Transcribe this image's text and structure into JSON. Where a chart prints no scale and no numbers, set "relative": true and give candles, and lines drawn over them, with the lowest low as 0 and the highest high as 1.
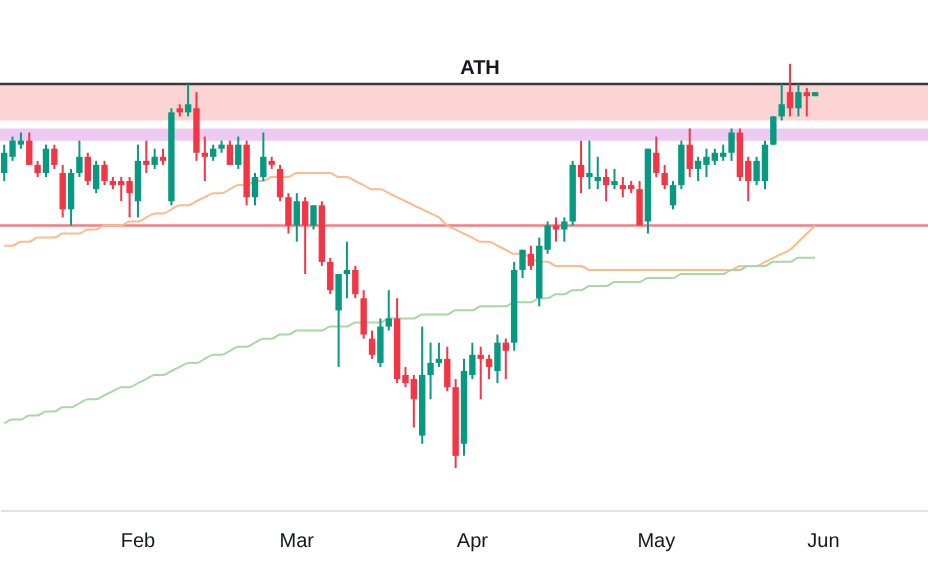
{
  "chart_data": {
    "type": "candlestick",
    "relative": true,
    "categories": [
      null,
      null,
      null,
      null,
      null,
      null,
      null,
      null,
      null,
      null,
      null,
      null,
      null,
      null,
      null,
      null,
      "Feb",
      null,
      null,
      null,
      null,
      null,
      null,
      null,
      null,
      null,
      null,
      null,
      null,
      null,
      null,
      null,
      null,
      null,
      null,
      "Mar",
      null,
      null,
      null,
      null,
      null,
      null,
      null,
      null,
      null,
      null,
      null,
      null,
      null,
      null,
      null,
      null,
      null,
      null,
      null,
      null,
      "Apr",
      null,
      null,
      null,
      null,
      null,
      null,
      null,
      null,
      null,
      null,
      null,
      null,
      null,
      null,
      null,
      null,
      null,
      null,
      null,
      null,
      null,
      "May",
      null,
      null,
      null,
      null,
      null,
      null,
      null,
      null,
      null,
      null,
      null,
      null,
      null,
      null,
      null,
      null,
      null,
      null,
      null,
      "Jun",
      null,
      null,
      null,
      null,
      null,
      null,
      null,
      null,
      null,
      null,
      null,
      null
    ],
    "ohlc": [
      [
        0.73,
        0.8,
        0.71,
        0.78
      ],
      [
        0.77,
        0.82,
        0.76,
        0.81
      ],
      [
        0.8,
        0.83,
        0.79,
        0.81
      ],
      [
        0.81,
        0.83,
        0.75,
        0.75
      ],
      [
        0.75,
        0.76,
        0.72,
        0.73
      ],
      [
        0.73,
        0.8,
        0.72,
        0.79
      ],
      [
        0.79,
        0.8,
        0.74,
        0.75
      ],
      [
        0.73,
        0.75,
        0.62,
        0.64
      ],
      [
        0.64,
        0.74,
        0.6,
        0.73
      ],
      [
        0.73,
        0.81,
        0.72,
        0.77
      ],
      [
        0.77,
        0.78,
        0.7,
        0.71
      ],
      [
        0.69,
        0.76,
        0.68,
        0.75
      ],
      [
        0.75,
        0.76,
        0.7,
        0.71
      ],
      [
        0.71,
        0.72,
        0.69,
        0.7
      ],
      [
        0.71,
        0.72,
        0.66,
        0.7
      ],
      [
        0.71,
        0.72,
        0.62,
        0.68
      ],
      [
        0.66,
        0.8,
        0.62,
        0.76
      ],
      [
        0.76,
        0.81,
        0.73,
        0.75
      ],
      [
        0.75,
        0.79,
        0.74,
        0.77
      ],
      [
        0.77,
        0.79,
        0.75,
        0.76
      ],
      [
        0.66,
        0.89,
        0.65,
        0.88
      ],
      [
        0.89,
        0.9,
        0.87,
        0.88
      ],
      [
        0.88,
        0.95,
        0.87,
        0.9
      ],
      [
        0.89,
        0.93,
        0.76,
        0.78
      ],
      [
        0.78,
        0.82,
        0.71,
        0.77
      ],
      [
        0.77,
        0.8,
        0.76,
        0.79
      ],
      [
        0.79,
        0.81,
        0.78,
        0.8
      ],
      [
        0.8,
        0.81,
        0.75,
        0.75
      ],
      [
        0.75,
        0.82,
        0.74,
        0.8
      ],
      [
        0.8,
        0.81,
        0.65,
        0.67
      ],
      [
        0.67,
        0.73,
        0.65,
        0.72
      ],
      [
        0.72,
        0.83,
        0.71,
        0.77
      ],
      [
        0.76,
        0.77,
        0.74,
        0.75
      ],
      [
        0.74,
        0.75,
        0.66,
        0.67
      ],
      [
        0.67,
        0.68,
        0.58,
        0.6
      ],
      [
        0.6,
        0.68,
        0.56,
        0.66
      ],
      [
        0.66,
        0.67,
        0.48,
        0.6
      ],
      [
        0.6,
        0.65,
        0.59,
        0.65
      ],
      [
        0.65,
        0.66,
        0.5,
        0.51
      ],
      [
        0.51,
        0.52,
        0.43,
        0.44
      ],
      [
        0.39,
        0.48,
        0.25,
        0.48
      ],
      [
        0.48,
        0.56,
        0.42,
        0.49
      ],
      [
        0.49,
        0.5,
        0.42,
        0.43
      ],
      [
        0.42,
        0.44,
        0.32,
        0.33
      ],
      [
        0.32,
        0.34,
        0.27,
        0.28
      ],
      [
        0.26,
        0.37,
        0.25,
        0.35
      ],
      [
        0.35,
        0.44,
        0.34,
        0.37
      ],
      [
        0.37,
        0.42,
        0.21,
        0.22
      ],
      [
        0.23,
        0.25,
        0.2,
        0.21
      ],
      [
        0.22,
        0.23,
        0.1,
        0.17
      ],
      [
        0.08,
        0.35,
        0.06,
        0.23
      ],
      [
        0.23,
        0.31,
        0.17,
        0.26
      ],
      [
        0.26,
        0.31,
        0.25,
        0.27
      ],
      [
        0.27,
        0.3,
        0.19,
        0.2
      ],
      [
        0.2,
        0.22,
        0,
        0.03
      ],
      [
        0.06,
        0.27,
        0.03,
        0.24
      ],
      [
        0.23,
        0.31,
        0.22,
        0.28
      ],
      [
        0.28,
        0.3,
        0.17,
        0.27
      ],
      [
        0.27,
        0.28,
        0.22,
        0.25
      ],
      [
        0.24,
        0.33,
        0.21,
        0.31
      ],
      [
        0.31,
        0.32,
        0.22,
        0.29
      ],
      [
        0.31,
        0.51,
        0.29,
        0.49
      ],
      [
        0.49,
        0.54,
        0.47,
        0.54
      ],
      [
        0.53,
        0.55,
        0.49,
        0.5
      ],
      [
        0.42,
        0.57,
        0.4,
        0.55
      ],
      [
        0.54,
        0.61,
        0.53,
        0.6
      ],
      [
        0.6,
        0.62,
        0.56,
        0.59
      ],
      [
        0.59,
        0.62,
        0.56,
        0.61
      ],
      [
        0.61,
        0.76,
        0.6,
        0.75
      ],
      [
        0.75,
        0.81,
        0.68,
        0.72
      ],
      [
        0.72,
        0.81,
        0.69,
        0.73
      ],
      [
        0.71,
        0.77,
        0.69,
        0.72
      ],
      [
        0.72,
        0.74,
        0.66,
        0.7
      ],
      [
        0.7,
        0.74,
        0.69,
        0.71
      ],
      [
        0.7,
        0.72,
        0.67,
        0.69
      ],
      [
        0.7,
        0.71,
        0.68,
        0.69
      ],
      [
        0.69,
        0.71,
        0.6,
        0.6
      ],
      [
        0.61,
        0.79,
        0.58,
        0.79
      ],
      [
        0.78,
        0.82,
        0.72,
        0.73
      ],
      [
        0.73,
        0.75,
        0.69,
        0.7
      ],
      [
        0.65,
        0.71,
        0.64,
        0.7
      ],
      [
        0.7,
        0.81,
        0.69,
        0.8
      ],
      [
        0.8,
        0.84,
        0.72,
        0.74
      ],
      [
        0.74,
        0.77,
        0.71,
        0.76
      ],
      [
        0.75,
        0.79,
        0.72,
        0.77
      ],
      [
        0.76,
        0.79,
        0.75,
        0.78
      ],
      [
        0.77,
        0.8,
        0.76,
        0.78
      ],
      [
        0.78,
        0.84,
        0.76,
        0.83
      ],
      [
        0.83,
        0.84,
        0.71,
        0.72
      ],
      [
        0.76,
        0.77,
        0.66,
        0.71
      ],
      [
        0.71,
        0.77,
        0.7,
        0.76
      ],
      [
        0.71,
        0.81,
        0.69,
        0.8
      ],
      [
        0.8,
        0.87,
        0.8,
        0.87
      ],
      [
        0.87,
        0.95,
        0.86,
        0.9
      ],
      [
        0.93,
        1,
        0.87,
        0.89
      ],
      [
        0.89,
        0.95,
        0.87,
        0.93
      ],
      [
        0.93,
        0.94,
        0.87,
        0.92
      ],
      [
        0.92,
        0.93,
        0.92,
        0.93
      ],
      null,
      null,
      null,
      null,
      null,
      null,
      null,
      null,
      null,
      null,
      null,
      null,
      null
    ],
    "colors": [
      "#089981",
      "#089981",
      "#089981",
      "#f23645",
      "#f23645",
      "#089981",
      "#f23645",
      "#f23645",
      "#089981",
      "#089981",
      "#f23645",
      "#089981",
      "#f23645",
      "#f23645",
      "#f23645",
      "#f23645",
      "#089981",
      "#f23645",
      "#089981",
      "#f23645",
      "#089981",
      "#f23645",
      "#089981",
      "#f23645",
      "#f23645",
      "#089981",
      "#089981",
      "#f23645",
      "#089981",
      "#f23645",
      "#089981",
      "#089981",
      "#f23645",
      "#f23645",
      "#f23645",
      "#089981",
      "#f23645",
      "#089981",
      "#f23645",
      "#f23645",
      "#089981",
      "#089981",
      "#f23645",
      "#f23645",
      "#f23645",
      "#089981",
      "#089981",
      "#f23645",
      "#f23645",
      "#f23645",
      "#089981",
      "#089981",
      "#089981",
      "#f23645",
      "#f23645",
      "#089981",
      "#089981",
      "#f23645",
      "#f23645",
      "#089981",
      "#f23645",
      "#089981",
      "#089981",
      "#f23645",
      "#089981",
      "#089981",
      "#f23645",
      "#089981",
      "#089981",
      "#f23645",
      "#089981",
      "#089981",
      "#f23645",
      "#089981",
      "#f23645",
      "#f23645",
      "#f23645",
      "#089981",
      "#f23645",
      "#f23645",
      "#089981",
      "#089981",
      "#f23645",
      "#089981",
      "#089981",
      "#089981",
      "#089981",
      "#089981",
      "#f23645",
      "#f23645",
      "#089981",
      "#089981",
      "#089981",
      "#089981",
      "#f23645",
      "#089981",
      "#f23645",
      "#089981",
      null,
      null,
      null,
      null,
      null,
      null,
      null,
      null,
      null,
      null,
      null,
      null,
      null
    ],
    "series": [
      {
        "type": "line",
        "color": "#ffb98a",
        "values": [
          0.55,
          0.55,
          0.56,
          0.56,
          0.57,
          0.57,
          0.57,
          0.58,
          0.58,
          0.58,
          0.59,
          0.59,
          0.6,
          0.6,
          0.6,
          0.61,
          0.61,
          0.62,
          0.63,
          0.63,
          0.64,
          0.65,
          0.65,
          0.66,
          0.67,
          0.68,
          0.68,
          0.69,
          0.7,
          0.7,
          0.71,
          0.71,
          0.72,
          0.72,
          0.72,
          0.73,
          0.73,
          0.73,
          0.73,
          0.73,
          0.72,
          0.72,
          0.71,
          0.7,
          0.69,
          0.69,
          0.68,
          0.67,
          0.66,
          0.65,
          0.64,
          0.63,
          0.62,
          0.6,
          0.59,
          0.58,
          0.57,
          0.56,
          0.56,
          0.55,
          0.54,
          0.53,
          0.53,
          0.52,
          0.51,
          0.51,
          0.5,
          0.5,
          0.5,
          0.5,
          0.49,
          0.49,
          0.49,
          0.49,
          0.49,
          0.49,
          0.49,
          0.49,
          0.49,
          0.49,
          0.49,
          0.49,
          0.49,
          0.49,
          0.49,
          0.49,
          0.49,
          0.49,
          0.5,
          0.5,
          0.5,
          0.51,
          0.52,
          0.53,
          0.54,
          0.56,
          0.58,
          0.6,
          null,
          null,
          null,
          null,
          null,
          null,
          null,
          null,
          null,
          null,
          null,
          null,
          null
        ]
      },
      {
        "type": "line",
        "color": "#a9d8a4",
        "values": [
          0.11,
          0.12,
          0.12,
          0.13,
          0.13,
          0.14,
          0.14,
          0.15,
          0.15,
          0.16,
          0.17,
          0.17,
          0.18,
          0.19,
          0.2,
          0.2,
          0.21,
          0.22,
          0.23,
          0.23,
          0.24,
          0.25,
          0.26,
          0.26,
          0.27,
          0.28,
          0.28,
          0.29,
          0.3,
          0.3,
          0.31,
          0.32,
          0.32,
          0.33,
          0.33,
          0.34,
          0.34,
          0.34,
          0.34,
          0.35,
          0.35,
          0.35,
          0.36,
          0.36,
          0.36,
          0.36,
          0.37,
          0.37,
          0.37,
          0.37,
          0.38,
          0.38,
          0.38,
          0.38,
          0.39,
          0.39,
          0.39,
          0.4,
          0.4,
          0.4,
          0.4,
          0.41,
          0.41,
          0.41,
          0.42,
          0.42,
          0.43,
          0.43,
          0.44,
          0.44,
          0.45,
          0.45,
          0.45,
          0.46,
          0.46,
          0.46,
          0.46,
          0.47,
          0.47,
          0.47,
          0.47,
          0.48,
          0.48,
          0.48,
          0.48,
          0.48,
          0.48,
          0.49,
          0.49,
          0.5,
          0.5,
          0.5,
          0.51,
          0.51,
          0.51,
          0.52,
          0.52,
          0.52,
          null,
          null,
          null,
          null,
          null,
          null,
          null,
          null,
          null,
          null,
          null,
          null,
          null
        ]
      }
    ],
    "bands": [
      {
        "axis": "y",
        "from": 0.86,
        "to": 0.95,
        "color": "#fccfcf"
      },
      {
        "axis": "y",
        "from": 0.81,
        "to": 0.84,
        "color": "#ebc4f0"
      }
    ],
    "ref_lines": [
      {
        "axis": "y",
        "value": 0.95,
        "label": "ATH",
        "color": "#3a3a3a"
      },
      {
        "axis": "y",
        "value": 0.6,
        "color": "#f77c80"
      }
    ],
    "tick_labels": "x",
    "grid": false
  }
}
